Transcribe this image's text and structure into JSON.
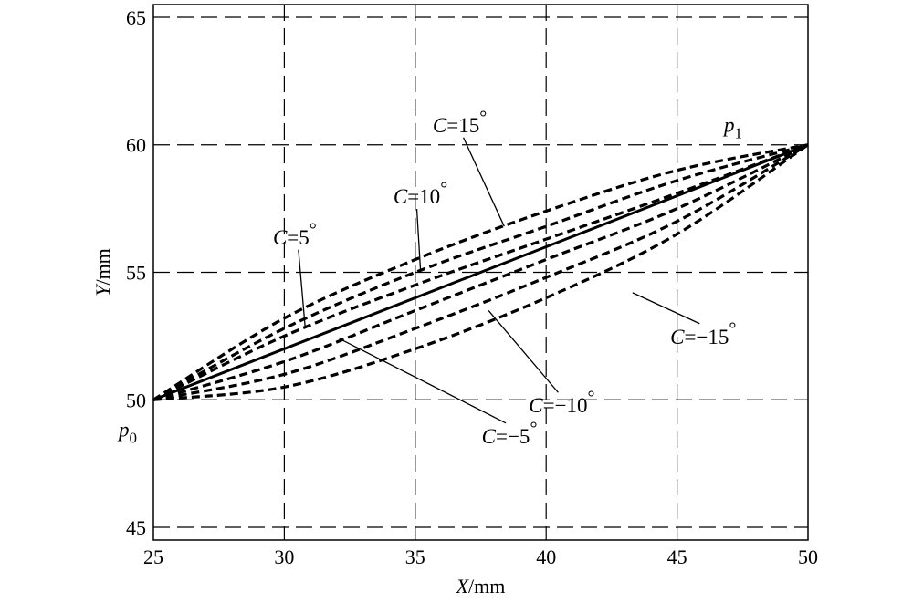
{
  "chart_data": {
    "type": "line",
    "title": "",
    "xlabel": {
      "var": "X",
      "unit": "/mm"
    },
    "ylabel": {
      "var": "Y",
      "unit": "/mm"
    },
    "xlim": [
      25,
      50
    ],
    "ylim": [
      44.5,
      65.5
    ],
    "x_ticks": [
      25,
      30,
      35,
      40,
      45,
      50
    ],
    "y_ticks": [
      45,
      50,
      55,
      60,
      65
    ],
    "grid": "dashed",
    "points": {
      "p0": {
        "label": "p",
        "sub": "0",
        "x": 25,
        "y": 50
      },
      "p1": {
        "label": "p",
        "sub": "1",
        "x": 50,
        "y": 60
      }
    },
    "series": [
      {
        "C": 0,
        "style": "solid",
        "x": [
          25,
          50
        ],
        "y": [
          50,
          60
        ]
      },
      {
        "C": 5,
        "style": "dashed",
        "x": [
          25,
          30,
          35,
          40,
          45,
          50
        ],
        "y": [
          50,
          52.5,
          54.5,
          56.3,
          58.1,
          60
        ]
      },
      {
        "C": 10,
        "style": "dashed",
        "x": [
          25,
          30,
          35,
          40,
          45,
          50
        ],
        "y": [
          50,
          52.8,
          55,
          56.8,
          58.6,
          60
        ]
      },
      {
        "C": 15,
        "style": "dashed",
        "x": [
          25,
          30,
          35,
          40,
          45,
          50
        ],
        "y": [
          50,
          53.2,
          55.5,
          57.4,
          59,
          60
        ]
      },
      {
        "C": -5,
        "style": "dashed",
        "x": [
          25,
          30,
          35,
          40,
          45,
          50
        ],
        "y": [
          50,
          51.5,
          53.5,
          55.5,
          57.5,
          60
        ]
      },
      {
        "C": -10,
        "style": "dashed",
        "x": [
          25,
          30,
          35,
          40,
          45,
          50
        ],
        "y": [
          50,
          51,
          52.8,
          54.8,
          57,
          60
        ]
      },
      {
        "C": -15,
        "style": "dashed",
        "x": [
          25,
          30,
          35,
          40,
          45,
          50
        ],
        "y": [
          50,
          50.5,
          52,
          54,
          56.5,
          60
        ]
      }
    ],
    "annotations": [
      {
        "prefix": "C",
        "text": "=15",
        "deg": "°",
        "text_x": 36.7,
        "text_y": 60.5,
        "point_x": 38.4,
        "point_y": 56.8
      },
      {
        "prefix": "C",
        "text": "=10",
        "deg": "°",
        "text_x": 35.2,
        "text_y": 57.7,
        "point_x": 35.2,
        "point_y": 55.1
      },
      {
        "prefix": "C",
        "text": "=5",
        "deg": "°",
        "text_x": 30.4,
        "text_y": 56.1,
        "point_x": 30.8,
        "point_y": 52.8
      },
      {
        "prefix": "C",
        "text": "=−15",
        "deg": "°",
        "text_x": 46,
        "text_y": 52.2,
        "point_x": 43.3,
        "point_y": 54.2
      },
      {
        "prefix": "C",
        "text": "=−10",
        "deg": "°",
        "text_x": 40.6,
        "text_y": 49.5,
        "point_x": 37.8,
        "point_y": 53.5
      },
      {
        "prefix": "C",
        "text": "=−5",
        "deg": "°",
        "text_x": 38.6,
        "text_y": 48.3,
        "point_x": 32.1,
        "point_y": 52.4
      }
    ]
  }
}
